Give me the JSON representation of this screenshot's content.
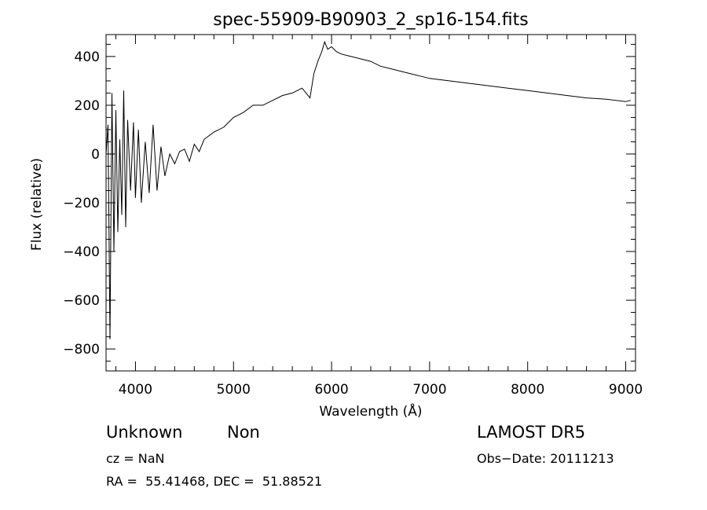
{
  "chart_data": {
    "type": "line",
    "title": "spec-55909-B90903_2_sp16-154.fits",
    "xlabel": "Wavelength (Å)",
    "ylabel": "Flux (relative)",
    "xlim": [
      3700,
      9100
    ],
    "ylim": [
      -890,
      490
    ],
    "xticks": [
      4000,
      5000,
      6000,
      7000,
      8000,
      9000
    ],
    "yticks": [
      -800,
      -600,
      -400,
      -200,
      0,
      200,
      400
    ],
    "xtick_labels": [
      "4000",
      "5000",
      "6000",
      "7000",
      "8000",
      "9000"
    ],
    "ytick_labels": [
      "−800",
      "−600",
      "−400",
      "−200",
      "0",
      "200",
      "400"
    ],
    "series": [
      {
        "x": [
          3700,
          3720,
          3740,
          3760,
          3780,
          3800,
          3820,
          3840,
          3860,
          3880,
          3900,
          3920,
          3950,
          3980,
          4000,
          4030,
          4060,
          4100,
          4140,
          4180,
          4220,
          4260,
          4300,
          4350,
          4400,
          4450,
          4500,
          4550,
          4600,
          4650,
          4700,
          4800,
          4900,
          5000,
          5100,
          5200,
          5300,
          5400,
          5500,
          5600,
          5700,
          5780,
          5820,
          5860,
          5900,
          5930,
          5960,
          6000,
          6050,
          6100,
          6200,
          6300,
          6400,
          6500,
          6600,
          6700,
          6800,
          6900,
          7000,
          7200,
          7400,
          7600,
          7800,
          8000,
          8200,
          8400,
          8600,
          8800,
          9000,
          9050
        ],
        "y": [
          0,
          120,
          -760,
          250,
          -400,
          180,
          -320,
          60,
          -250,
          260,
          -300,
          140,
          -150,
          130,
          -180,
          100,
          -200,
          50,
          -160,
          120,
          -150,
          30,
          -90,
          0,
          -40,
          10,
          20,
          -30,
          40,
          10,
          60,
          90,
          110,
          150,
          170,
          200,
          200,
          220,
          240,
          250,
          270,
          230,
          330,
          380,
          420,
          460,
          430,
          440,
          420,
          410,
          400,
          390,
          380,
          360,
          350,
          340,
          330,
          320,
          310,
          300,
          290,
          280,
          270,
          260,
          250,
          240,
          230,
          225,
          215,
          220
        ]
      }
    ]
  },
  "annotations": {
    "object_class": "Unknown",
    "subclass": "Non",
    "cz": "cz = NaN",
    "coords": "RA =  55.41468, DEC =  51.88521",
    "survey": "LAMOST DR5",
    "obs_date": "Obs−Date: 20111213"
  }
}
